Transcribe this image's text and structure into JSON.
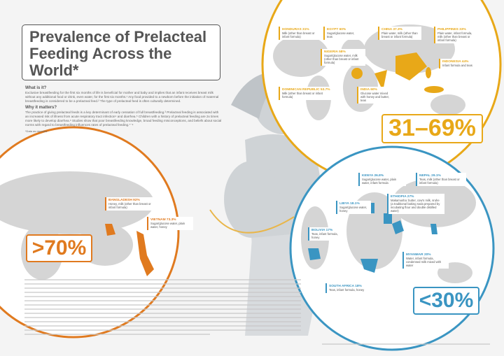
{
  "title": "Prevalence of Prelacteal Feeding Across the World*",
  "intro": {
    "what_heading": "What is it?",
    "what_text": "Exclusive breastfeeding for the first six months of life is beneficial for mother and baby and implies that an infant receives breast milk without any additional food or drink, even water, for the first six months.¹ Any food provided to a newborn before the initiation of maternal breastfeeding is considered to be a prelacteal feed.² The type of prelacteal feed is often culturally determined.",
    "why_heading": "Why it matters?",
    "why_text": "The practice of giving prelacteal feeds is a key determinant of early cessation of full breastfeeding.³ Prelacteal feeding is associated with an increased risk of illness from acute respiratory tract infection⁴ and diarrhea.⁵ Children with a history of prelacteal feeding are 2x times more likely to develop diarrhea.⁶ Studies show that poor breastfeeding knowledge, broad feeding misconceptions, and beliefs about social norms with regard to breastfeeding influences rates of prelacteal feeding.⁷⁻⁹",
    "note": "*Data as reported"
  },
  "groups": [
    {
      "range": "31–69%",
      "countries": [
        {
          "name": "HONDURAS 31%",
          "feeds": "Milk (other than breast or infant formula)"
        },
        {
          "name": "EGYPT 60%",
          "feeds": "Sugar/glucose water, teas"
        },
        {
          "name": "CHINA 37.3%",
          "feeds": "Plain water, milk (other than breast or infant formula)"
        },
        {
          "name": "PHILIPPINES 33%",
          "feeds": "Plain water, infant formula, milk (other than breast or infant formula)"
        },
        {
          "name": "NIGERIA 58%",
          "feeds": "Sugar/glucose water, milk (other than breast or infant formula)"
        },
        {
          "name": "INDONESIA 44%",
          "feeds": "Infant formula and teas"
        },
        {
          "name": "DOMINICAN REPUBLIC 53.7%",
          "feeds": "Milk (other than breast or infant formula)"
        },
        {
          "name": "INDIA 60%",
          "feeds": "Glucose water mixed with honey and butter, teas"
        }
      ]
    },
    {
      "range": ">70%",
      "countries": [
        {
          "name": "BANGLADESH 92%",
          "feeds": "Honey, milk (other than breast or infant formula)"
        },
        {
          "name": "VIETNAM 73.3%",
          "feeds": "Sugar/glucose water, plain water, honey"
        }
      ]
    },
    {
      "range": "<30%",
      "countries": [
        {
          "name": "KENYA 26.8%",
          "feeds": "Sugar/glucose water, plain water, infant formula"
        },
        {
          "name": "NEPAL 29.1%",
          "feeds": "Teas, milk (other than breast or infant formula)"
        },
        {
          "name": "LIBYA 18.1%",
          "feeds": "Sugar/glucose water, honey"
        },
        {
          "name": "ETHIOPIA 27%",
          "feeds": "Makamusha: butter, cow's milk, sruhe (a traditional baking soda prepared by incubating flour and double distilled water)"
        },
        {
          "name": "BOLIVIA 17%",
          "feeds": "Teas, infant formula, honey"
        },
        {
          "name": "MYANMAR 20%",
          "feeds": "Water, infant formula, condensed milk mixed with water"
        },
        {
          "name": "SOUTH AFRICA 18%",
          "feeds": "Teas, infant formula, honey"
        }
      ]
    }
  ]
}
